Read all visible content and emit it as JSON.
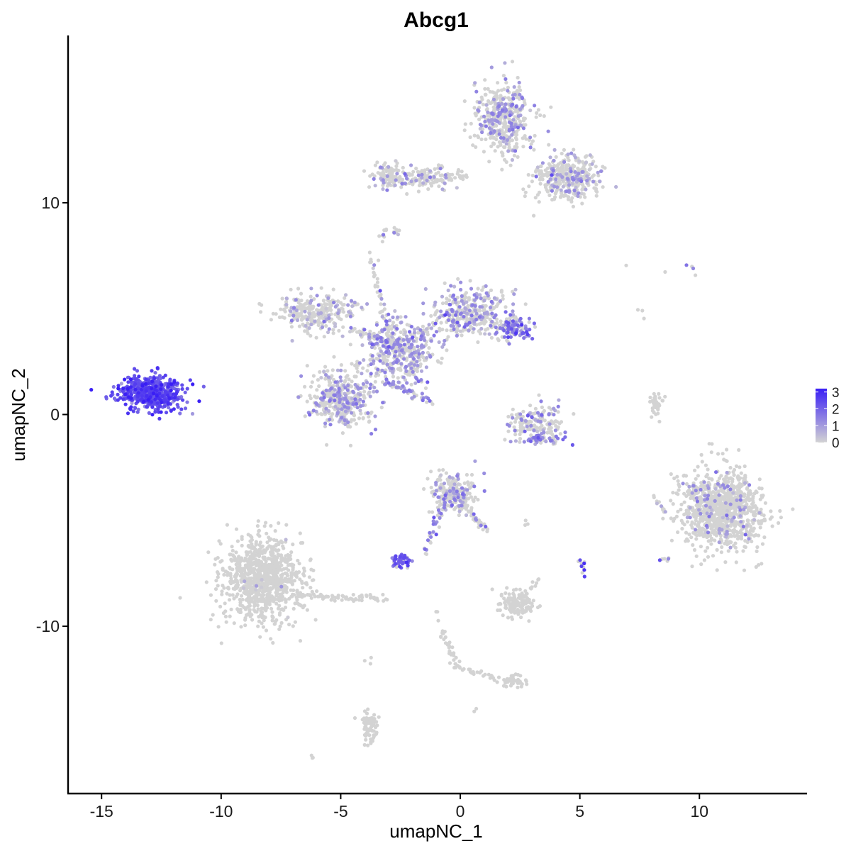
{
  "chart_data": {
    "type": "scatter",
    "title": "Abcg1",
    "xlabel": "umapNC_1",
    "ylabel": "umapNC_2",
    "xlim": [
      -16.4,
      14.5
    ],
    "ylim": [
      -17.9,
      17.9
    ],
    "x_ticks": [
      -15,
      -10,
      -5,
      0,
      5,
      10
    ],
    "x_tick_labels": [
      "-15",
      "-10",
      "-5",
      "0",
      "5",
      "10"
    ],
    "y_ticks": [
      10,
      0,
      -10
    ],
    "y_tick_labels": [
      "10",
      "0",
      "-10"
    ],
    "grid": false,
    "color_scale": {
      "low_color": "#d3d3d3",
      "high_color": "#3a1ff5",
      "min": 0,
      "max": 3.2,
      "ticks": [
        3,
        2,
        1,
        0
      ],
      "tick_labels": [
        "3",
        "2",
        "1",
        "0"
      ],
      "legend_position": "right"
    },
    "clusters": [
      {
        "cx": -12.9,
        "cy": 1.0,
        "sx": 0.9,
        "sy": 0.55,
        "n": 520,
        "expr_mean": 2.3,
        "expr_sd": 0.5,
        "expr_frac": 1.0
      },
      {
        "cx": -8.3,
        "cy": -7.8,
        "sx": 1.1,
        "sy": 1.3,
        "n": 950,
        "expr_mean": 0.4,
        "expr_sd": 0.3,
        "expr_frac": 0.01
      },
      {
        "cx": -5.0,
        "cy": 0.8,
        "sx": 0.9,
        "sy": 0.9,
        "n": 400,
        "expr_mean": 1.0,
        "expr_sd": 0.4,
        "expr_frac": 0.35
      },
      {
        "cx": -2.5,
        "cy": 3.0,
        "sx": 1.0,
        "sy": 1.0,
        "n": 400,
        "expr_mean": 1.1,
        "expr_sd": 0.4,
        "expr_frac": 0.4
      },
      {
        "cx": -6.0,
        "cy": 4.8,
        "sx": 1.1,
        "sy": 0.6,
        "n": 280,
        "expr_mean": 0.9,
        "expr_sd": 0.4,
        "expr_frac": 0.2
      },
      {
        "cx": 0.5,
        "cy": 4.8,
        "sx": 1.0,
        "sy": 0.8,
        "n": 350,
        "expr_mean": 1.1,
        "expr_sd": 0.4,
        "expr_frac": 0.35
      },
      {
        "cx": 2.2,
        "cy": 4.1,
        "sx": 0.4,
        "sy": 0.4,
        "n": 110,
        "expr_mean": 1.6,
        "expr_sd": 0.5,
        "expr_frac": 0.6
      },
      {
        "cx": 1.8,
        "cy": 14.0,
        "sx": 0.8,
        "sy": 1.1,
        "n": 420,
        "expr_mean": 1.0,
        "expr_sd": 0.4,
        "expr_frac": 0.3
      },
      {
        "cx": 4.5,
        "cy": 11.2,
        "sx": 0.9,
        "sy": 0.7,
        "n": 380,
        "expr_mean": 0.9,
        "expr_sd": 0.4,
        "expr_frac": 0.2
      },
      {
        "cx": -1.5,
        "cy": 11.2,
        "sx": 1.2,
        "sy": 0.4,
        "n": 130,
        "expr_mean": 0.9,
        "expr_sd": 0.4,
        "expr_frac": 0.15
      },
      {
        "cx": 10.9,
        "cy": -4.5,
        "sx": 1.1,
        "sy": 1.3,
        "n": 950,
        "expr_mean": 1.0,
        "expr_sd": 0.4,
        "expr_frac": 0.08
      },
      {
        "cx": 3.2,
        "cy": -0.4,
        "sx": 0.7,
        "sy": 0.55,
        "n": 160,
        "expr_mean": 1.2,
        "expr_sd": 0.4,
        "expr_frac": 0.25
      },
      {
        "cx": -0.3,
        "cy": -3.7,
        "sx": 0.6,
        "sy": 0.6,
        "n": 220,
        "expr_mean": 1.0,
        "expr_sd": 0.4,
        "expr_frac": 0.2
      },
      {
        "cx": 2.4,
        "cy": -9.0,
        "sx": 0.5,
        "sy": 0.4,
        "n": 130,
        "expr_mean": 0.5,
        "expr_sd": 0.3,
        "expr_frac": 0.0
      },
      {
        "cx": -3.8,
        "cy": -14.8,
        "sx": 0.25,
        "sy": 0.5,
        "n": 70,
        "expr_mean": 0.5,
        "expr_sd": 0.3,
        "expr_frac": 0.0
      },
      {
        "cx": 2.3,
        "cy": -12.6,
        "sx": 0.35,
        "sy": 0.2,
        "n": 40,
        "expr_mean": 0.5,
        "expr_sd": 0.3,
        "expr_frac": 0.0
      },
      {
        "cx": -2.5,
        "cy": -6.9,
        "sx": 0.3,
        "sy": 0.2,
        "n": 45,
        "expr_mean": 2.0,
        "expr_sd": 0.4,
        "expr_frac": 0.8
      },
      {
        "cx": 8.2,
        "cy": 0.4,
        "sx": 0.2,
        "sy": 0.4,
        "n": 40,
        "expr_mean": 0.5,
        "expr_sd": 0.3,
        "expr_frac": 0.0
      },
      {
        "cx": -3.0,
        "cy": 11.3,
        "sx": 0.45,
        "sy": 0.45,
        "n": 70,
        "expr_mean": 0.9,
        "expr_sd": 0.4,
        "expr_frac": 0.2
      },
      {
        "cx": 3.4,
        "cy": -1.2,
        "sx": 0.6,
        "sy": 0.15,
        "n": 40,
        "expr_mean": 1.5,
        "expr_sd": 0.4,
        "expr_frac": 0.6
      }
    ],
    "trails": [
      {
        "x0": -3.2,
        "y0": 1.6,
        "x1": -1.2,
        "y1": 0.6,
        "n": 40,
        "expr_mean": 1.2,
        "expr_sd": 0.4,
        "expr_frac": 0.6
      },
      {
        "x0": -4.5,
        "y0": 4.0,
        "x1": -2.0,
        "y1": 3.0,
        "n": 60,
        "expr_mean": 1.0,
        "expr_sd": 0.4,
        "expr_frac": 0.3
      },
      {
        "x0": -3.8,
        "y0": 7.5,
        "x1": -3.0,
        "y1": 4.0,
        "n": 35,
        "expr_mean": 1.0,
        "expr_sd": 0.4,
        "expr_frac": 0.3
      },
      {
        "x0": -3.2,
        "y0": -8.7,
        "x1": -7.0,
        "y1": -8.5,
        "n": 70,
        "expr_mean": 0.5,
        "expr_sd": 0.3,
        "expr_frac": 0.0
      },
      {
        "x0": -0.6,
        "y0": -3.7,
        "x1": -1.5,
        "y1": -6.6,
        "n": 35,
        "expr_mean": 1.5,
        "expr_sd": 0.4,
        "expr_frac": 0.5
      },
      {
        "x0": 0.0,
        "y0": -4.0,
        "x1": 1.1,
        "y1": -5.5,
        "n": 40,
        "expr_mean": 1.0,
        "expr_sd": 0.4,
        "expr_frac": 0.2
      },
      {
        "x0": -0.7,
        "y0": -10.2,
        "x1": -0.2,
        "y1": -11.9,
        "n": 30,
        "expr_mean": 0.5,
        "expr_sd": 0.3,
        "expr_frac": 0.0
      },
      {
        "x0": -0.2,
        "y0": -11.9,
        "x1": 2.0,
        "y1": -12.6,
        "n": 30,
        "expr_mean": 0.5,
        "expr_sd": 0.3,
        "expr_frac": 0.0
      },
      {
        "x0": 2.5,
        "y0": -8.7,
        "x1": 3.3,
        "y1": -7.8,
        "n": 15,
        "expr_mean": 0.5,
        "expr_sd": 0.3,
        "expr_frac": 0.0
      },
      {
        "x0": 5.1,
        "y0": -6.9,
        "x1": 5.1,
        "y1": -7.5,
        "n": 10,
        "expr_mean": 2.8,
        "expr_sd": 0.3,
        "expr_frac": 0.6
      },
      {
        "x0": -2.7,
        "y0": 8.8,
        "x1": -2.7,
        "y1": 8.5,
        "n": 8,
        "expr_mean": 1.0,
        "expr_sd": 0.4,
        "expr_frac": 0.3
      },
      {
        "x0": -1.6,
        "y0": 11.2,
        "x1": 0.2,
        "y1": 11.2,
        "n": 20,
        "expr_mean": 1.0,
        "expr_sd": 0.4,
        "expr_frac": 0.2
      },
      {
        "x0": 8.1,
        "y0": -3.9,
        "x1": 8.6,
        "y1": -4.8,
        "n": 12,
        "expr_mean": 0.8,
        "expr_sd": 0.3,
        "expr_frac": 0.1
      },
      {
        "x0": 8.3,
        "y0": -6.8,
        "x1": 8.8,
        "y1": -6.9,
        "n": 6,
        "expr_mean": 1.5,
        "expr_sd": 0.4,
        "expr_frac": 0.5
      },
      {
        "x0": 9.5,
        "y0": 7.0,
        "x1": 9.9,
        "y1": 6.6,
        "n": 4,
        "expr_mean": 1.5,
        "expr_sd": 0.4,
        "expr_frac": 0.5
      },
      {
        "x0": 7.6,
        "y0": 4.9,
        "x1": 7.7,
        "y1": 4.6,
        "n": 3,
        "expr_mean": 0.5,
        "expr_sd": 0.3,
        "expr_frac": 0.0
      },
      {
        "x0": 6.9,
        "y0": 6.9,
        "x1": 6.9,
        "y1": 6.9,
        "n": 1,
        "expr_mean": 0.5,
        "expr_sd": 0.3,
        "expr_frac": 0.0
      },
      {
        "x0": 8.5,
        "y0": 6.6,
        "x1": 8.5,
        "y1": 6.6,
        "n": 1,
        "expr_mean": 0.5,
        "expr_sd": 0.3,
        "expr_frac": 0.0
      },
      {
        "x0": -6.2,
        "y0": -16.2,
        "x1": -6.1,
        "y1": -16.1,
        "n": 3,
        "expr_mean": 0.5,
        "expr_sd": 0.3,
        "expr_frac": 0.0
      },
      {
        "x0": 0.6,
        "y0": -14.0,
        "x1": 0.6,
        "y1": -14.1,
        "n": 2,
        "expr_mean": 0.5,
        "expr_sd": 0.3,
        "expr_frac": 0.0
      },
      {
        "x0": -0.9,
        "y0": -9.3,
        "x1": -0.9,
        "y1": -9.6,
        "n": 3,
        "expr_mean": 0.5,
        "expr_sd": 0.3,
        "expr_frac": 0.0
      },
      {
        "x0": 1.3,
        "y0": -8.3,
        "x1": 1.3,
        "y1": -8.3,
        "n": 1,
        "expr_mean": 0.5,
        "expr_sd": 0.3,
        "expr_frac": 0.0
      },
      {
        "x0": 2.7,
        "y0": -5.1,
        "x1": 2.9,
        "y1": -5.1,
        "n": 3,
        "expr_mean": 0.5,
        "expr_sd": 0.3,
        "expr_frac": 0.0
      },
      {
        "x0": -3.9,
        "y0": -11.5,
        "x1": -3.9,
        "y1": -11.8,
        "n": 3,
        "expr_mean": 0.5,
        "expr_sd": 0.3,
        "expr_frac": 0.0
      },
      {
        "x0": -3.3,
        "y0": 8.2,
        "x1": -3.1,
        "y1": 8.8,
        "n": 8,
        "expr_mean": 0.9,
        "expr_sd": 0.3,
        "expr_frac": 0.2
      },
      {
        "x0": -3.5,
        "y0": 7.4,
        "x1": -3.5,
        "y1": 7.4,
        "n": 1,
        "expr_mean": 0.5,
        "expr_sd": 0.3,
        "expr_frac": 0.0
      }
    ]
  }
}
